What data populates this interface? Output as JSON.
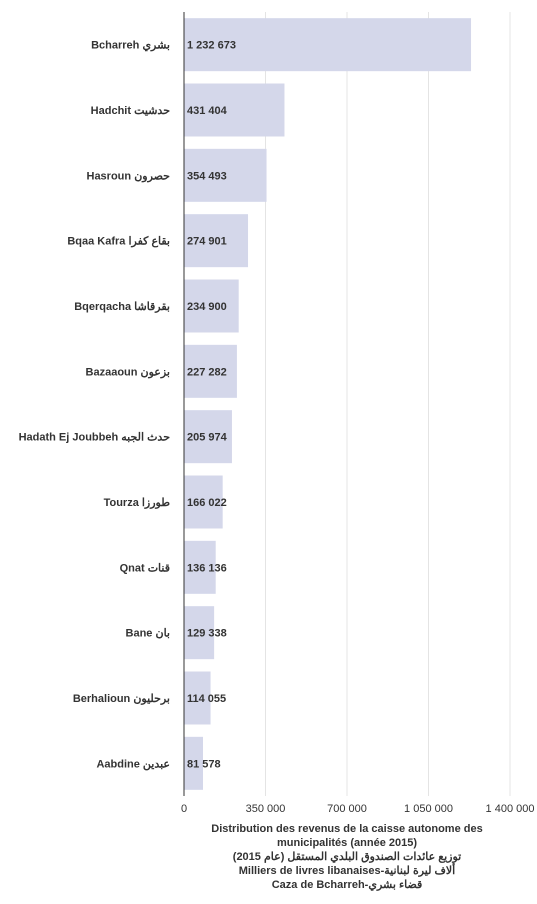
{
  "chart_data": {
    "type": "bar",
    "orientation": "horizontal",
    "categories": [
      "Bcharreh بشري",
      "Hadchit حدشيت",
      "Hasroun حصرون",
      "Bqaa Kafra بقاع كفرا",
      "Bqerqacha بقرقاشا",
      "Bazaaoun بزعون",
      "Hadath Ej Joubbeh حدث الجبه",
      "Tourza طورزا",
      "Qnat قنات",
      "Bane بان",
      "Berhalioun برحليون",
      "Aabdine عبدين"
    ],
    "values": [
      1232673,
      431404,
      354493,
      274901,
      234900,
      227282,
      205974,
      166022,
      136136,
      129338,
      114055,
      81578
    ],
    "value_labels": [
      "1 232 673",
      "431 404",
      "354 493",
      "274 901",
      "234 900",
      "227 282",
      "205 974",
      "166 022",
      "136 136",
      "129 338",
      "114 055",
      "81 578"
    ],
    "xlim": [
      0,
      1400000
    ],
    "x_ticks": [
      0,
      350000,
      700000,
      1050000,
      1400000
    ],
    "x_tick_labels": [
      "0",
      "350 000",
      "700 000",
      "1 050 000",
      "1 400 000"
    ],
    "grid": "vertical",
    "bar_color": "#d4d7ea",
    "caption": {
      "line1": "Distribution des revenus de la caisse autonome des municipalités (année 2015)",
      "line2": "توزيع عائدات الصندوق البلدي المستقل (عام 2015)",
      "line3": "Milliers de livres libanaises-ألاف ليرة لبنانية",
      "line4": "Caza de Bcharreh-قضاء بشري"
    }
  }
}
